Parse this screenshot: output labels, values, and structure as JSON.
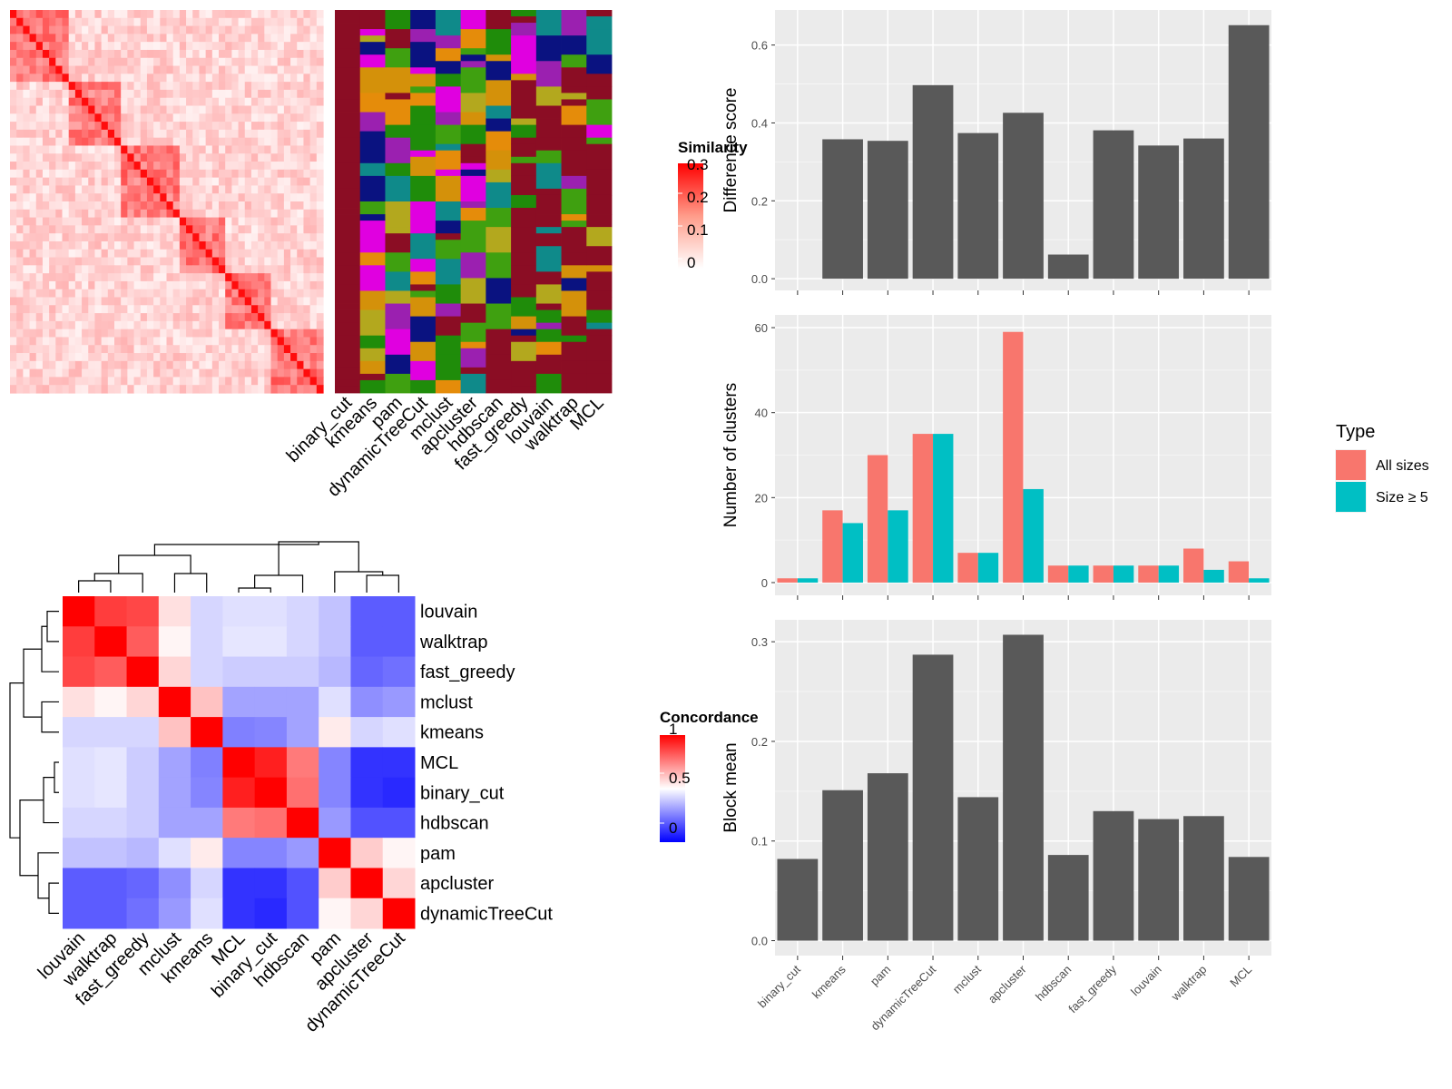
{
  "chart_data": [
    {
      "id": "similarity_heatmap",
      "type": "heatmap",
      "legend_title": "Similarity",
      "legend_ticks": [
        "0.3",
        "0.2",
        "0.1",
        "0"
      ],
      "colors": {
        "low": "#ffffff",
        "high": "#ff0000"
      },
      "annotation_columns": [
        "binary_cut",
        "kmeans",
        "pam",
        "dynamicTreeCut",
        "mclust",
        "apcluster",
        "hdbscan",
        "fast_greedy",
        "louvain",
        "walktrap",
        "MCL"
      ]
    },
    {
      "id": "concordance_heatmap",
      "type": "heatmap",
      "legend_title": "Concordance",
      "legend_ticks": [
        "1",
        "0.5",
        "0"
      ],
      "colors": {
        "low": "#0000ff",
        "mid": "#ffffff",
        "high": "#ff0000"
      },
      "rows": [
        "louvain",
        "walktrap",
        "fast_greedy",
        "mclust",
        "kmeans",
        "MCL",
        "binary_cut",
        "hdbscan",
        "pam",
        "apcluster",
        "dynamicTreeCut"
      ],
      "columns": [
        "louvain",
        "walktrap",
        "fast_greedy",
        "mclust",
        "kmeans",
        "MCL",
        "binary_cut",
        "hdbscan",
        "pam",
        "apcluster",
        "dynamicTreeCut"
      ],
      "values": [
        [
          1.0,
          0.88,
          0.86,
          0.56,
          0.42,
          0.44,
          0.44,
          0.42,
          0.38,
          0.18,
          0.18
        ],
        [
          0.88,
          1.0,
          0.82,
          0.52,
          0.42,
          0.45,
          0.45,
          0.42,
          0.38,
          0.18,
          0.18
        ],
        [
          0.86,
          0.82,
          1.0,
          0.58,
          0.42,
          0.4,
          0.4,
          0.4,
          0.36,
          0.2,
          0.22
        ],
        [
          0.56,
          0.52,
          0.58,
          1.0,
          0.62,
          0.32,
          0.32,
          0.32,
          0.44,
          0.28,
          0.3
        ],
        [
          0.42,
          0.42,
          0.42,
          0.62,
          1.0,
          0.25,
          0.26,
          0.32,
          0.54,
          0.42,
          0.44
        ],
        [
          0.44,
          0.45,
          0.4,
          0.32,
          0.25,
          1.0,
          0.94,
          0.76,
          0.26,
          0.1,
          0.1
        ],
        [
          0.44,
          0.45,
          0.4,
          0.32,
          0.26,
          0.94,
          1.0,
          0.78,
          0.26,
          0.1,
          0.08
        ],
        [
          0.42,
          0.42,
          0.4,
          0.32,
          0.32,
          0.76,
          0.78,
          1.0,
          0.3,
          0.16,
          0.16
        ],
        [
          0.38,
          0.38,
          0.36,
          0.44,
          0.54,
          0.26,
          0.26,
          0.3,
          1.0,
          0.6,
          0.52
        ],
        [
          0.18,
          0.18,
          0.2,
          0.28,
          0.42,
          0.1,
          0.1,
          0.16,
          0.6,
          1.0,
          0.58
        ],
        [
          0.18,
          0.18,
          0.22,
          0.3,
          0.44,
          0.1,
          0.08,
          0.16,
          0.52,
          0.58,
          1.0
        ]
      ]
    },
    {
      "id": "difference_score",
      "type": "bar",
      "ylabel": "Difference score",
      "categories": [
        "binary_cut",
        "kmeans",
        "pam",
        "dynamicTreeCut",
        "mclust",
        "apcluster",
        "hdbscan",
        "fast_greedy",
        "louvain",
        "walktrap",
        "MCL"
      ],
      "values": [
        0.0,
        0.358,
        0.354,
        0.497,
        0.374,
        0.426,
        0.062,
        0.381,
        0.342,
        0.36,
        0.651
      ],
      "ylim": [
        -0.03,
        0.69
      ],
      "yticks": [
        0.0,
        0.2,
        0.4,
        0.6
      ],
      "ytick_labels": [
        "0.0",
        "0.2",
        "0.4",
        "0.6"
      ],
      "grid": true
    },
    {
      "id": "number_of_clusters",
      "type": "bar",
      "ylabel": "Number of clusters",
      "categories": [
        "binary_cut",
        "kmeans",
        "pam",
        "dynamicTreeCut",
        "mclust",
        "apcluster",
        "hdbscan",
        "fast_greedy",
        "louvain",
        "walktrap",
        "MCL"
      ],
      "series": [
        {
          "name": "All sizes",
          "color": "#f8766d",
          "values": [
            1,
            17,
            30,
            35,
            7,
            59,
            4,
            4,
            4,
            8,
            5
          ]
        },
        {
          "name": "Size ≥ 5",
          "color": "#00bfc4",
          "values": [
            1,
            14,
            17,
            35,
            7,
            22,
            4,
            4,
            4,
            3,
            1
          ]
        }
      ],
      "legend_title": "Type",
      "legend_position": "right",
      "ylim": [
        -3,
        63
      ],
      "yticks": [
        0,
        20,
        40,
        60
      ],
      "ytick_labels": [
        "0",
        "20",
        "40",
        "60"
      ],
      "grid": true
    },
    {
      "id": "block_mean",
      "type": "bar",
      "ylabel": "Block mean",
      "categories": [
        "binary_cut",
        "kmeans",
        "pam",
        "dynamicTreeCut",
        "mclust",
        "apcluster",
        "hdbscan",
        "fast_greedy",
        "louvain",
        "walktrap",
        "MCL"
      ],
      "values": [
        0.082,
        0.151,
        0.168,
        0.287,
        0.144,
        0.307,
        0.086,
        0.13,
        0.122,
        0.125,
        0.084
      ],
      "ylim": [
        -0.015,
        0.322
      ],
      "yticks": [
        0.0,
        0.1,
        0.2,
        0.3
      ],
      "ytick_labels": [
        "0.0",
        "0.1",
        "0.2",
        "0.3"
      ],
      "grid": true
    }
  ]
}
